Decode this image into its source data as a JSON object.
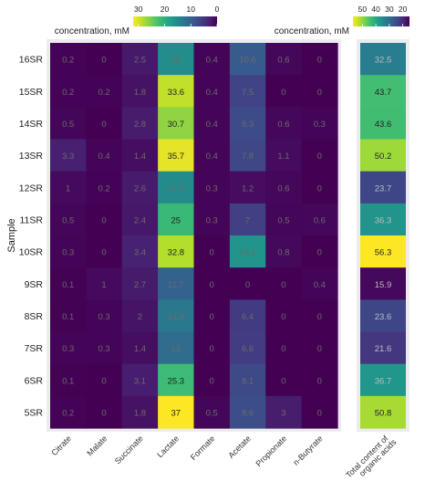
{
  "chart_data": [
    {
      "type": "heatmap",
      "xlabel": "",
      "ylabel": "Sample",
      "colorbar_label": "concentration, mM",
      "colorbar_ticks": [
        30,
        20,
        10,
        0
      ],
      "columns": [
        "Citrate",
        "Malate",
        "Succinate",
        "Lactate",
        "Formate",
        "Acetate",
        "Propionate",
        "n-Butyrate"
      ],
      "rows": [
        "16SR",
        "15SR",
        "14SR",
        "13SR",
        "12SR",
        "11SR",
        "10SR",
        "9SR",
        "8SR",
        "7SR",
        "6SR",
        "5SR"
      ],
      "values": [
        [
          0.2,
          0,
          2.5,
          18,
          0.4,
          10.6,
          0.6,
          0
        ],
        [
          0.2,
          0.2,
          1.8,
          33.6,
          0.4,
          7.5,
          0,
          0
        ],
        [
          0.5,
          0,
          2.8,
          30.7,
          0.4,
          8.3,
          0.6,
          0.3
        ],
        [
          3.3,
          0.4,
          1.4,
          35.7,
          0.4,
          7.8,
          1.1,
          0
        ],
        [
          1,
          0.2,
          2.6,
          17.8,
          0.3,
          1.2,
          0.6,
          0
        ],
        [
          0.5,
          0,
          2.4,
          25,
          0.3,
          7,
          0.5,
          0.6
        ],
        [
          0.3,
          0,
          3.4,
          32.8,
          0,
          19.1,
          0.8,
          0
        ],
        [
          0.1,
          1,
          2.7,
          11.7,
          0,
          0,
          0,
          0.4
        ],
        [
          0.1,
          0.3,
          2,
          14.8,
          0,
          6.4,
          0,
          0
        ],
        [
          0.3,
          0.3,
          1.4,
          13,
          0,
          6.6,
          0,
          0
        ],
        [
          0.1,
          0,
          3.1,
          25.3,
          0,
          8.1,
          0,
          0
        ],
        [
          0.2,
          0,
          1.8,
          37,
          0.5,
          8.6,
          3,
          0
        ]
      ],
      "zlim": [
        0,
        37
      ]
    },
    {
      "type": "heatmap",
      "colorbar_label": "concentration, mM",
      "colorbar_ticks": [
        50,
        40,
        30,
        20
      ],
      "columns": [
        "Total content of organic acids"
      ],
      "rows": [
        "16SR",
        "15SR",
        "14SR",
        "13SR",
        "12SR",
        "11SR",
        "10SR",
        "9SR",
        "8SR",
        "7SR",
        "6SR",
        "5SR"
      ],
      "values": [
        32.5,
        43.7,
        43.6,
        50.2,
        23.7,
        36.3,
        56.3,
        15.9,
        23.6,
        21.6,
        36.7,
        50.8
      ],
      "zlim": [
        15,
        56.3
      ]
    }
  ]
}
